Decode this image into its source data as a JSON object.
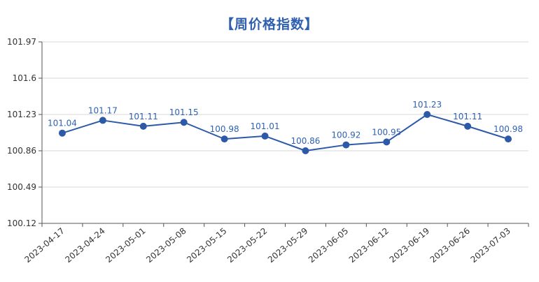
{
  "chart_data": {
    "type": "line",
    "title": "【周价格指数】",
    "xlabel": "",
    "ylabel": "",
    "categories": [
      "2023-04-17",
      "2023-04-24",
      "2023-05-01",
      "2023-05-08",
      "2023-05-15",
      "2023-05-22",
      "2023-05-29",
      "2023-06-05",
      "2023-06-12",
      "2023-06-19",
      "2023-06-26",
      "2023-07-03"
    ],
    "series": [
      {
        "values": [
          101.04,
          101.17,
          101.11,
          101.15,
          100.98,
          101.01,
          100.86,
          100.92,
          100.95,
          101.23,
          101.11,
          100.98
        ],
        "labels": [
          "101.04",
          "101.17",
          "101.11",
          "101.15",
          "100.98",
          "101.01",
          "100.86",
          "100.92",
          "100.95",
          "101.23",
          "101.11",
          "100.98"
        ]
      }
    ],
    "ylim": [
      100.12,
      101.97
    ],
    "yticks": [
      100.12,
      100.49,
      100.86,
      101.23,
      101.6,
      101.97
    ],
    "ytick_labels": [
      "100.12",
      "100.49",
      "100.86",
      "101.23",
      "101.6",
      "101.97"
    ],
    "grid": true,
    "legend": "none",
    "colors": {
      "line": "#2d5aa8",
      "title": "#2f5fb0",
      "label": "#2f62b3",
      "grid": "#d7d7d7",
      "axis": "#555555",
      "tick_text": "#333333"
    }
  }
}
